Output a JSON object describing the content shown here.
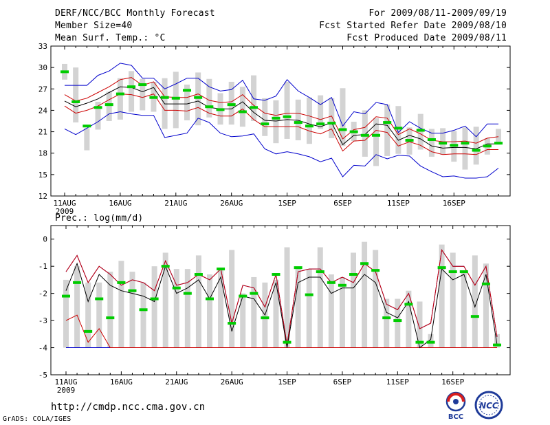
{
  "header": {
    "title": "DERF/NCC/BCC Monthly Forecast",
    "member_size": "Member Size=40",
    "variable": "Mean Surf. Temp.: °C",
    "period": "For 2009/08/11-2009/09/19",
    "started": "Fcst Started Refer Date 2009/08/10",
    "produced": "Fcst Produced Date 2009/08/11"
  },
  "footer": {
    "url": "http://cmdp.ncc.cma.gov.cn",
    "grads": "GrADS: COLA/IGES",
    "logo_bcc": "BCC",
    "logo_ncc": "NCC"
  },
  "colors": {
    "box": "#d3d3d3",
    "median": "#00cc00",
    "mean": "#000000",
    "inner": "#cc0000",
    "outer": "#0000cc"
  },
  "chart_data": [
    {
      "type": "box-plume",
      "title": "Mean Surf. Temp.: °C",
      "xlabel": "",
      "ylabel": "",
      "ylim": [
        12,
        33
      ],
      "yticks": [
        12,
        15,
        18,
        21,
        24,
        27,
        30,
        33
      ],
      "xtick_labels": [
        "11AUG",
        "16AUG",
        "21AUG",
        "26AUG",
        "1SEP",
        "6SEP",
        "11SEP",
        "16SEP"
      ],
      "year_label": "2009",
      "days": 40,
      "box_low": [
        28.3,
        22.3,
        18.4,
        21.3,
        22.5,
        22.7,
        23.8,
        24.0,
        23.8,
        21.4,
        21.5,
        22.6,
        21.9,
        23.0,
        22.0,
        22.0,
        21.7,
        22.5,
        20.4,
        19.4,
        20.0,
        19.8,
        19.3,
        21.4,
        20.1,
        19.0,
        19.7,
        17.5,
        16.2,
        17.6,
        17.9,
        17.8,
        18.5,
        17.5,
        17.8,
        16.8,
        15.7,
        16.4,
        17.8,
        19.2
      ],
      "box_high": [
        30.5,
        30.0,
        21.5,
        25.2,
        26.6,
        28.5,
        29.5,
        28.4,
        28.0,
        28.5,
        29.4,
        27.6,
        29.3,
        28.4,
        26.4,
        28.0,
        27.3,
        28.9,
        25.7,
        25.4,
        28.0,
        25.5,
        25.8,
        26.1,
        25.7,
        27.1,
        22.4,
        24.0,
        22.9,
        24.8,
        24.6,
        21.6,
        23.5,
        21.4,
        21.5,
        21.1,
        21.6,
        21.7,
        20.1,
        21.4
      ],
      "median": [
        29.4,
        25.2,
        21.8,
        24.4,
        24.8,
        26.3,
        27.3,
        27.6,
        25.8,
        25.8,
        25.7,
        26.8,
        25.8,
        24.5,
        24.1,
        24.8,
        23.8,
        24.4,
        22.1,
        22.9,
        23.1,
        22.3,
        21.8,
        22.1,
        22.2,
        21.3,
        21.0,
        20.5,
        20.5,
        22.3,
        21.5,
        19.8,
        21.2,
        19.9,
        19.4,
        19.1,
        19.4,
        18.4,
        19.0,
        19.4
      ],
      "mean": [
        25.3,
        24.5,
        25.0,
        25.6,
        26.5,
        27.3,
        27.2,
        26.6,
        27.2,
        24.9,
        24.9,
        24.9,
        25.3,
        24.4,
        24.2,
        24.2,
        25.2,
        23.7,
        22.6,
        22.5,
        22.7,
        22.6,
        22.1,
        21.7,
        22.3,
        19.2,
        20.5,
        20.6,
        22.1,
        21.9,
        19.8,
        20.5,
        20.0,
        19.0,
        18.7,
        18.8,
        18.8,
        18.6,
        19.3,
        19.3
      ],
      "inner_upper": [
        26.2,
        25.3,
        25.7,
        26.5,
        27.3,
        28.3,
        28.6,
        27.5,
        28.0,
        25.9,
        25.8,
        25.8,
        26.3,
        25.4,
        25.1,
        25.2,
        26.2,
        24.7,
        23.6,
        23.3,
        23.6,
        23.6,
        23.2,
        22.7,
        23.2,
        20.0,
        21.3,
        21.6,
        23.1,
        22.9,
        20.6,
        21.4,
        20.7,
        19.8,
        19.6,
        19.6,
        19.7,
        19.4,
        20.1,
        20.3
      ],
      "inner_lower": [
        24.6,
        23.6,
        24.0,
        24.6,
        25.5,
        26.3,
        26.2,
        25.8,
        26.3,
        24.0,
        24.0,
        23.9,
        24.4,
        23.6,
        23.2,
        23.2,
        24.2,
        22.7,
        21.7,
        21.7,
        21.7,
        21.7,
        21.1,
        20.7,
        21.4,
        18.3,
        19.7,
        19.8,
        21.2,
        20.9,
        19.0,
        19.6,
        19.1,
        18.2,
        17.8,
        17.9,
        17.9,
        17.8,
        18.5,
        18.5
      ],
      "outer_upper": [
        27.5,
        27.5,
        27.5,
        28.9,
        29.5,
        30.6,
        30.3,
        28.5,
        28.5,
        27.0,
        27.7,
        28.5,
        28.5,
        27.3,
        26.7,
        26.9,
        28.2,
        25.6,
        25.4,
        26.0,
        28.3,
        26.7,
        25.8,
        24.8,
        25.8,
        21.8,
        23.8,
        23.5,
        25.1,
        24.8,
        20.9,
        22.4,
        21.5,
        20.8,
        20.8,
        21.2,
        21.8,
        20.3,
        22.1,
        22.1
      ],
      "outer_lower": [
        21.4,
        20.6,
        21.5,
        22.4,
        23.5,
        23.8,
        23.5,
        23.3,
        23.3,
        20.2,
        20.5,
        20.8,
        22.9,
        22.3,
        20.8,
        20.3,
        20.4,
        20.7,
        18.6,
        17.9,
        18.2,
        17.9,
        17.5,
        16.8,
        17.3,
        14.7,
        16.3,
        16.2,
        17.8,
        17.2,
        17.7,
        17.6,
        16.2,
        15.4,
        14.7,
        14.8,
        14.5,
        14.5,
        14.7,
        15.9
      ]
    },
    {
      "type": "box-plume",
      "title": "Prec.: log(mm/d)",
      "xlabel": "",
      "ylabel": "",
      "ylim": [
        -5,
        0.5
      ],
      "yticks": [
        -5,
        -4,
        -3,
        -2,
        -1,
        0
      ],
      "xtick_labels": [
        "11AUG",
        "16AUG",
        "21AUG",
        "26AUG",
        "1SEP",
        "6SEP",
        "11SEP",
        "16SEP"
      ],
      "year_label": "2009",
      "days": 40,
      "box_low": -4,
      "box_high": [
        -1.5,
        -1.0,
        -1.6,
        -1.6,
        -1.2,
        -0.8,
        -1.2,
        -1.6,
        -1.0,
        -0.5,
        -1.1,
        -1.1,
        -0.6,
        -1.3,
        -1.1,
        -0.4,
        -2.0,
        -1.4,
        -1.6,
        -1.5,
        -0.3,
        -1.1,
        -1.1,
        -0.3,
        -1.3,
        -1.4,
        -0.5,
        -0.1,
        -0.4,
        -2.2,
        -2.2,
        -1.9,
        -2.3,
        -3.5,
        -0.2,
        -0.5,
        -1.2,
        -0.6,
        -0.9,
        -3.5
      ],
      "median": [
        -2.1,
        -1.6,
        -3.4,
        -2.2,
        -2.9,
        -1.6,
        -1.9,
        -2.6,
        -2.2,
        -1.0,
        -1.8,
        -2.0,
        -1.3,
        -2.2,
        -1.1,
        -3.1,
        -2.1,
        -2.0,
        -2.9,
        -1.3,
        -3.8,
        -1.05,
        -2.05,
        -1.2,
        -1.6,
        -1.7,
        -1.3,
        -0.9,
        -1.15,
        -2.9,
        -3.0,
        -2.4,
        -3.8,
        -3.8,
        -1.05,
        -1.2,
        -1.2,
        -2.85,
        -1.65,
        -3.9
      ],
      "mean": [
        -1.9,
        -0.9,
        -2.3,
        -1.3,
        -1.7,
        -1.9,
        -2.0,
        -2.1,
        -2.3,
        -1.0,
        -2.0,
        -1.8,
        -1.5,
        -2.2,
        -1.4,
        -3.4,
        -2.1,
        -2.2,
        -2.8,
        -1.6,
        -4.0,
        -1.6,
        -1.4,
        -1.4,
        -2.0,
        -1.8,
        -1.8,
        -1.3,
        -1.6,
        -2.7,
        -2.9,
        -2.3,
        -4.0,
        -3.7,
        -1.1,
        -1.5,
        -1.3,
        -2.5,
        -1.3,
        -3.9
      ],
      "inner_upper": [
        -1.2,
        -0.6,
        -1.6,
        -1.0,
        -1.3,
        -1.7,
        -1.5,
        -1.6,
        -1.9,
        -0.8,
        -1.7,
        -1.6,
        -1.3,
        -1.5,
        -1.1,
        -3.1,
        -1.7,
        -1.8,
        -2.5,
        -1.3,
        -3.9,
        -1.2,
        -1.1,
        -1.1,
        -1.6,
        -1.4,
        -1.6,
        -0.9,
        -1.2,
        -2.4,
        -2.6,
        -2.0,
        -3.3,
        -3.1,
        -0.4,
        -1.0,
        -1.0,
        -1.7,
        -1.0,
        -3.6
      ],
      "inner_lower": [
        -3.0,
        -2.8,
        -3.8,
        -3.3,
        -4.0,
        -4.0,
        -4.0,
        -4.0,
        -4.0,
        -4.0,
        -4.0,
        -4.0,
        -4.0,
        -4.0,
        -4.0,
        -4.0,
        -4.0,
        -4.0,
        -4.0,
        -4.0,
        -4.0,
        -4.0,
        -4.0,
        -4.0,
        -4.0,
        -4.0,
        -4.0,
        -4.0,
        -4.0,
        -4.0,
        -4.0,
        -4.0,
        -4.0,
        -4.0,
        -4.0,
        -4.0,
        -4.0,
        -4.0,
        -4.0,
        -4.0
      ],
      "outer_upper": [
        -1.2,
        -0.6,
        -1.6,
        -1.0,
        -1.3,
        -1.7,
        -1.5,
        -1.6,
        -1.9,
        -0.8,
        -1.7,
        -1.6,
        -1.3,
        -1.5,
        -1.1,
        -3.1,
        -1.7,
        -1.8,
        -2.5,
        -1.3,
        -3.9,
        -1.2,
        -1.1,
        -1.1,
        -1.6,
        -1.4,
        -1.6,
        -0.9,
        -1.2,
        -2.4,
        -2.6,
        -2.0,
        -3.3,
        -3.1,
        -0.4,
        -1.0,
        -1.0,
        -1.7,
        -1.0,
        -3.6
      ],
      "outer_lower": [
        -4.0,
        -4.0,
        -4.0,
        -4.0,
        -4.0,
        -4.0,
        -4.0,
        -4.0,
        -4.0,
        -4.0,
        -4.0,
        -4.0,
        -4.0,
        -4.0,
        -4.0,
        -4.0,
        -4.0,
        -4.0,
        -4.0,
        -4.0,
        -4.0,
        -4.0,
        -4.0,
        -4.0,
        -4.0,
        -4.0,
        -4.0,
        -4.0,
        -4.0,
        -4.0,
        -4.0,
        -4.0,
        -4.0,
        -4.0,
        -4.0,
        -4.0,
        -4.0,
        -4.0,
        -4.0,
        -4.0
      ]
    }
  ]
}
